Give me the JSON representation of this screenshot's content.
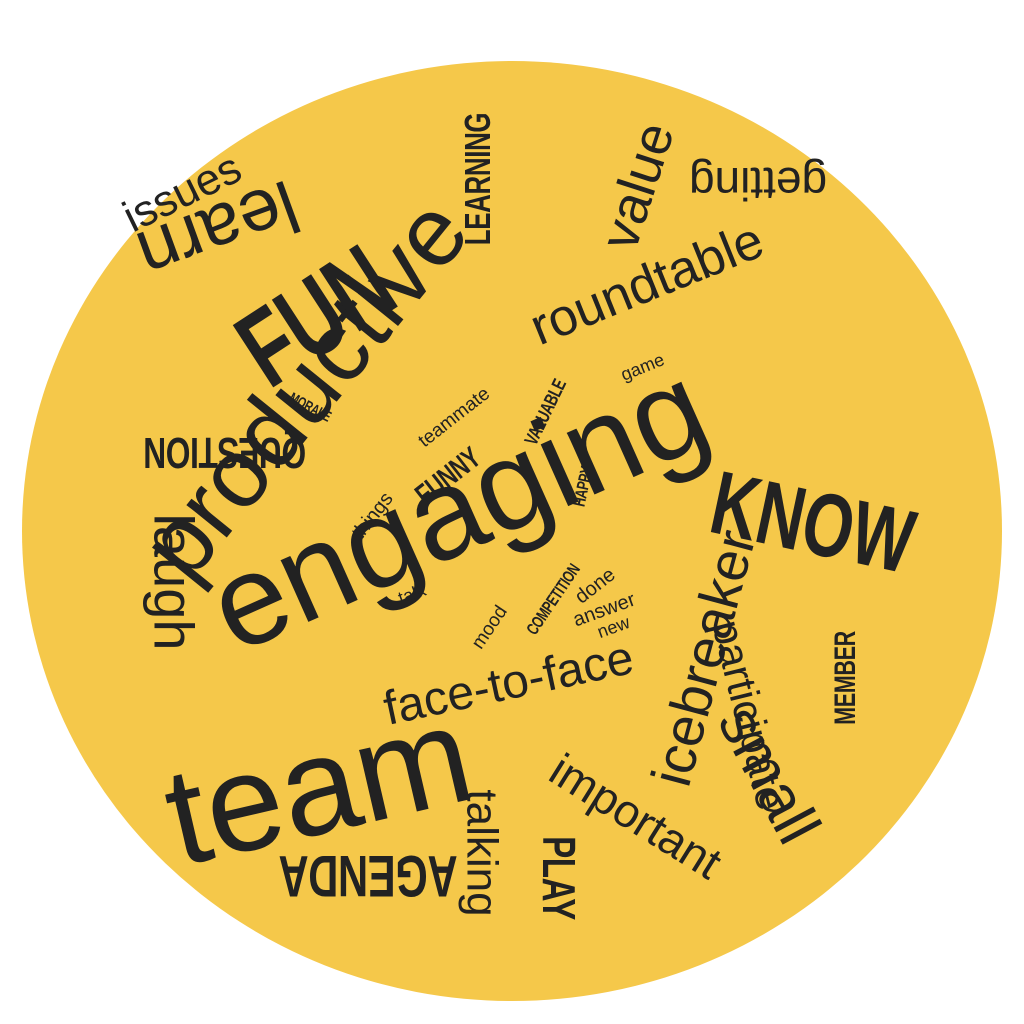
{
  "colors": {
    "background": "#FFFFFF",
    "disc": "#F5C84A",
    "text": "#222222"
  },
  "words": {
    "engaging": "engaging",
    "team": "team",
    "productive": "productive",
    "fun": "FUN",
    "know": "KNOW",
    "roundtable": "roundtable",
    "value": "value",
    "learn": "learn",
    "issues": "issues",
    "learning": "LEARNING",
    "getting": "getting",
    "question": "QUESTION",
    "morale": "MORALE",
    "teammate": "teammate",
    "valuable": "VALUABLE",
    "game": "game",
    "funny": "FUNNY",
    "happy": "HAPPY",
    "things": "things",
    "laugh": "laugh",
    "talk": "talk",
    "competition": "COMPETITION",
    "done": "done",
    "answer": "answer",
    "new": "new",
    "mood": "mood",
    "face_to_face": "face-to-face",
    "icebreaker": "icebreaker",
    "participate": "participate",
    "member": "MEMBER",
    "small": "small",
    "important": "important",
    "talking": "talking",
    "play": "PLAY",
    "agenda": "AGENDA"
  }
}
